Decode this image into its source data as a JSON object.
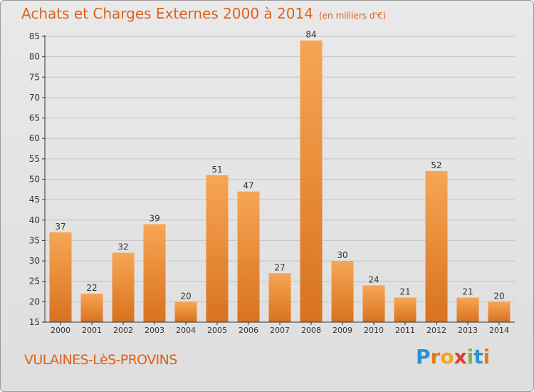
{
  "header": {
    "title": "Achats et Charges Externes 2000 à 2014",
    "unit": "(en milliers d'€)"
  },
  "footer": {
    "commune": "VULAINES-LèS-PROVINS",
    "logo_letters": [
      "P",
      "r",
      "o",
      "x",
      "i",
      "t",
      "i"
    ],
    "logo_colors": [
      "#2e8fd0",
      "#e77a1e",
      "#f3a51c",
      "#e23b33",
      "#7ab83a",
      "#2e8fd0",
      "#e77a1e"
    ]
  },
  "chart_data": {
    "type": "bar",
    "categories": [
      "2000",
      "2001",
      "2002",
      "2003",
      "2004",
      "2005",
      "2006",
      "2007",
      "2008",
      "2009",
      "2010",
      "2011",
      "2012",
      "2013",
      "2014"
    ],
    "values": [
      37,
      22,
      32,
      39,
      20,
      51,
      47,
      27,
      84,
      30,
      24,
      21,
      52,
      21,
      20
    ],
    "data_labels": [
      "37",
      "22",
      "32",
      "39",
      "20",
      "51",
      "47",
      "27",
      "84",
      "30",
      "24",
      "21",
      "52",
      "21",
      "20"
    ],
    "ylim": [
      15,
      85
    ],
    "yticks": [
      15,
      20,
      25,
      30,
      35,
      40,
      45,
      50,
      55,
      60,
      65,
      70,
      75,
      80,
      85
    ],
    "grid": true,
    "bar_color_top": "#f7a654",
    "bar_color_bottom": "#d8721f",
    "axis_color": "#333333"
  }
}
